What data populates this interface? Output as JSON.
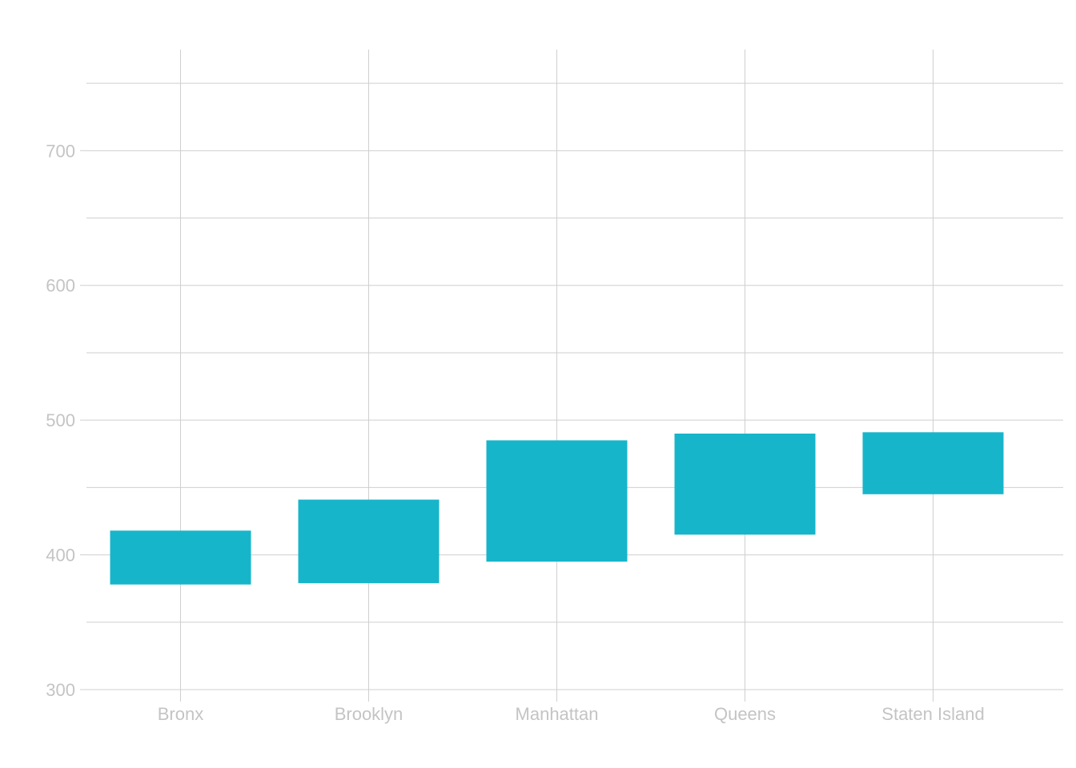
{
  "colors": {
    "bar": "#17b5ca",
    "grid": "#cfcfcf",
    "tick_label": "#c4c4c4",
    "background": "#ffffff"
  },
  "chart_data": {
    "type": "bar",
    "subtype": "floating-range",
    "title": "",
    "xlabel": "",
    "ylabel": "",
    "categories": [
      "Bronx",
      "Brooklyn",
      "Manhattan",
      "Queens",
      "Staten Island"
    ],
    "series": [
      {
        "ranges": [
          [
            378,
            418
          ],
          [
            379,
            441
          ],
          [
            395,
            485
          ],
          [
            415,
            490
          ],
          [
            445,
            491
          ]
        ]
      }
    ],
    "ylim": [
      300,
      775
    ],
    "yticks": [
      300,
      400,
      500,
      600,
      700
    ],
    "y_tick_labels": [
      "300",
      "400",
      "500",
      "600",
      "700"
    ],
    "y_minor_gridlines": [
      350,
      450,
      550,
      650,
      750
    ],
    "grid": true,
    "legend": "none"
  }
}
